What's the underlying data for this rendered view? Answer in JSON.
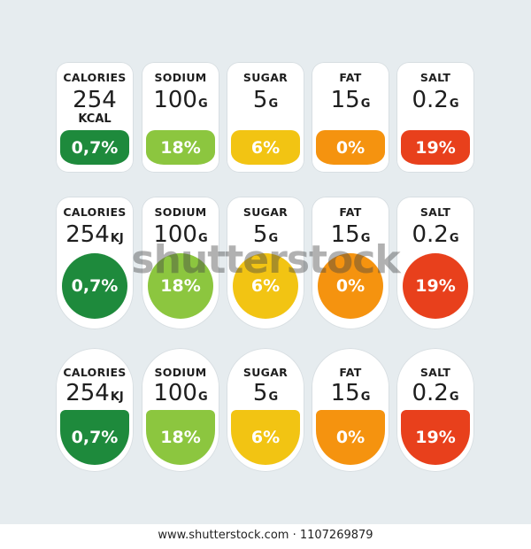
{
  "colors": {
    "calories": "#1e8a3c",
    "sodium": "#8cc63f",
    "sugar": "#f2c413",
    "fat": "#f5930f",
    "salt": "#e8401c"
  },
  "rows": [
    {
      "cards": [
        {
          "name": "CALORIES",
          "value": "254",
          "unit": "",
          "sub": "KCAL",
          "percent": "0,7%"
        },
        {
          "name": "SODIUM",
          "value": "100",
          "unit": "G",
          "percent": "18%"
        },
        {
          "name": "SUGAR",
          "value": "5",
          "unit": "G",
          "percent": "6%"
        },
        {
          "name": "FAT",
          "value": "15",
          "unit": "G",
          "percent": "0%"
        },
        {
          "name": "SALT",
          "value": "0.2",
          "unit": "G",
          "percent": "19%"
        }
      ]
    },
    {
      "cards": [
        {
          "name": "CALORIES",
          "value": "254",
          "unit": "KJ",
          "percent": "0,7%"
        },
        {
          "name": "SODIUM",
          "value": "100",
          "unit": "G",
          "percent": "18%"
        },
        {
          "name": "SUGAR",
          "value": "5",
          "unit": "G",
          "percent": "6%"
        },
        {
          "name": "FAT",
          "value": "15",
          "unit": "G",
          "percent": "0%"
        },
        {
          "name": "SALT",
          "value": "0.2",
          "unit": "G",
          "percent": "19%"
        }
      ]
    },
    {
      "cards": [
        {
          "name": "CALORIES",
          "value": "254",
          "unit": "KJ",
          "percent": "0,7%"
        },
        {
          "name": "SODIUM",
          "value": "100",
          "unit": "G",
          "percent": "18%"
        },
        {
          "name": "SUGAR",
          "value": "5",
          "unit": "G",
          "percent": "6%"
        },
        {
          "name": "FAT",
          "value": "15",
          "unit": "G",
          "percent": "0%"
        },
        {
          "name": "SALT",
          "value": "0.2",
          "unit": "G",
          "percent": "19%"
        }
      ]
    }
  ],
  "watermark": "shutterstock",
  "footer": "www.shutterstock.com · 1107269879"
}
